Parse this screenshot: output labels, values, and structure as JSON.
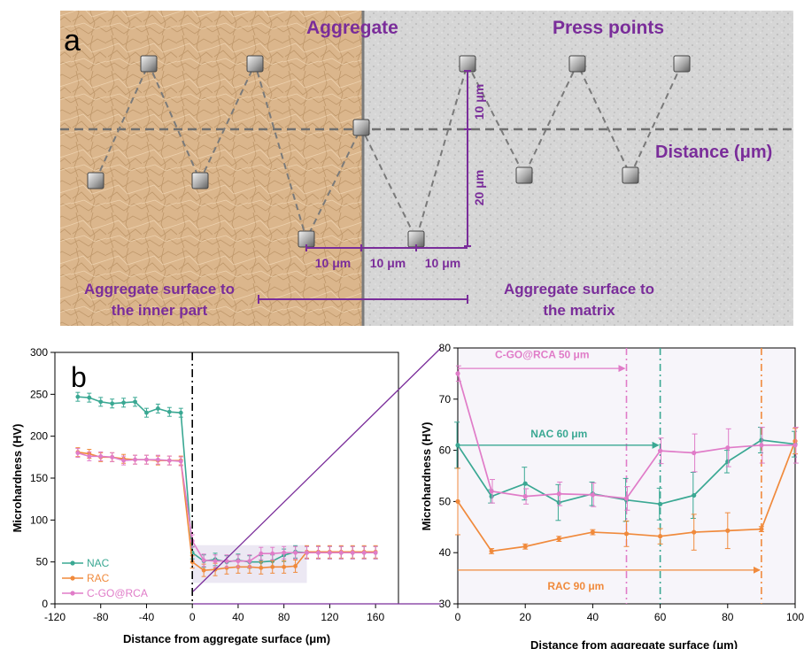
{
  "panel_a": {
    "letter": "a",
    "aggregate_label": "Aggregate",
    "press_points_label": "Press points",
    "distance_label": "Distance (μm)",
    "dim_10um_vertical": "10 μm",
    "dim_20um_vertical": "20 μm",
    "dim_10um_h1": "10 μm",
    "dim_10um_h2": "10 μm",
    "dim_10um_h3": "10 μm",
    "inner_label_line1": "Aggregate surface to",
    "inner_label_line2": "the inner part",
    "matrix_label_line1": "Aggregate surface to",
    "matrix_label_line2": "the matrix"
  },
  "panel_b_letter": "b",
  "colors": {
    "NAC": "#3aa893",
    "RAC": "#f08a3c",
    "C-GO@RCA": "#e07cc8",
    "annotation_purple": "#7a2d9a",
    "aggregate_bg": "#d9b48a",
    "matrix_bg": "#d8d8d8"
  },
  "chart_data": [
    {
      "type": "line",
      "xlabel": "Distance from aggregate surface (μm)",
      "ylabel": "Microhardness (HV)",
      "xlim": [
        -120,
        180
      ],
      "ylim": [
        0,
        300
      ],
      "x_ticks": [
        "-120",
        "-80",
        "-40",
        "0",
        "40",
        "80",
        "120",
        "160"
      ],
      "y_ticks": [
        "0",
        "50",
        "100",
        "150",
        "200",
        "250",
        "300"
      ],
      "legend_position": "bottom-left",
      "series": [
        {
          "name": "NAC",
          "x": [
            -100,
            -90,
            -80,
            -70,
            -60,
            -50,
            -40,
            -30,
            -20,
            -10,
            0,
            10,
            20,
            30,
            40,
            50,
            60,
            70,
            80,
            90,
            100,
            110,
            120,
            130,
            140,
            150,
            160
          ],
          "y": [
            247,
            246,
            241,
            239,
            240,
            241,
            228,
            233,
            229,
            228,
            61,
            51,
            53,
            50,
            52,
            50,
            50,
            51,
            58,
            62,
            61,
            61,
            61,
            61,
            61,
            61,
            61
          ]
        },
        {
          "name": "RAC",
          "x": [
            -100,
            -90,
            -80,
            -70,
            -60,
            -50,
            -40,
            -30,
            -20,
            -10,
            0,
            10,
            20,
            30,
            40,
            50,
            60,
            70,
            80,
            90,
            100,
            110,
            120,
            130,
            140,
            150,
            160
          ],
          "y": [
            181,
            179,
            175,
            175,
            173,
            172,
            172,
            171,
            171,
            171,
            50,
            40,
            41,
            43,
            44,
            44,
            43,
            44,
            44,
            45,
            62,
            62,
            62,
            62,
            62,
            62,
            62
          ]
        },
        {
          "name": "C-GO@RCA",
          "x": [
            -100,
            -90,
            -80,
            -70,
            -60,
            -50,
            -40,
            -30,
            -20,
            -10,
            0,
            10,
            20,
            30,
            40,
            50,
            60,
            70,
            80,
            90,
            100,
            110,
            120,
            130,
            140,
            150,
            160
          ],
          "y": [
            180,
            176,
            176,
            175,
            171,
            172,
            172,
            172,
            171,
            170,
            75,
            52,
            51,
            51,
            51,
            51,
            60,
            60,
            61,
            61,
            61,
            61,
            61,
            61,
            61,
            61,
            61
          ]
        }
      ]
    },
    {
      "type": "line",
      "xlabel": "Distance from aggregate surface (μm)",
      "ylabel": "Microhardness (HV)",
      "xlim": [
        0,
        100
      ],
      "ylim": [
        30,
        80
      ],
      "x_ticks": [
        "0",
        "20",
        "40",
        "60",
        "80",
        "100"
      ],
      "y_ticks": [
        "30",
        "40",
        "50",
        "60",
        "70",
        "80"
      ],
      "annotations": [
        "C-GO@RCA 50 μm",
        "NAC 60 μm",
        "RAC 90 μm"
      ],
      "annotation_x": [
        50,
        60,
        90
      ],
      "series": [
        {
          "name": "NAC",
          "x": [
            0,
            10,
            20,
            30,
            40,
            50,
            60,
            70,
            80,
            90,
            100
          ],
          "y": [
            61,
            51,
            53.5,
            49.8,
            51.5,
            50.3,
            49.5,
            51.2,
            57.8,
            62,
            61.2
          ],
          "err": [
            4.5,
            1.3,
            3.2,
            3.5,
            2.3,
            4.2,
            3.1,
            4.5,
            2.2,
            2.5,
            2.5
          ]
        },
        {
          "name": "RAC",
          "x": [
            0,
            10,
            20,
            30,
            40,
            50,
            60,
            70,
            80,
            90,
            100
          ],
          "y": [
            50,
            40.3,
            41.2,
            42.7,
            44,
            43.7,
            43.2,
            44,
            44.3,
            44.6,
            61.8
          ],
          "err": [
            6.5,
            0.5,
            0.5,
            0.5,
            0.5,
            2.5,
            1.5,
            3.5,
            3.5,
            0.5,
            2.5
          ]
        },
        {
          "name": "C-GO@RCA",
          "x": [
            0,
            10,
            20,
            30,
            40,
            50,
            60,
            70,
            80,
            90,
            100
          ],
          "y": [
            75,
            52,
            51,
            51.5,
            51.3,
            50.6,
            59.9,
            59.5,
            60.5,
            61,
            61
          ],
          "err": [
            1.5,
            2.3,
            1.5,
            2.3,
            2.3,
            2.3,
            2.5,
            3.7,
            3.7,
            3.5,
            3.5
          ]
        }
      ]
    }
  ]
}
